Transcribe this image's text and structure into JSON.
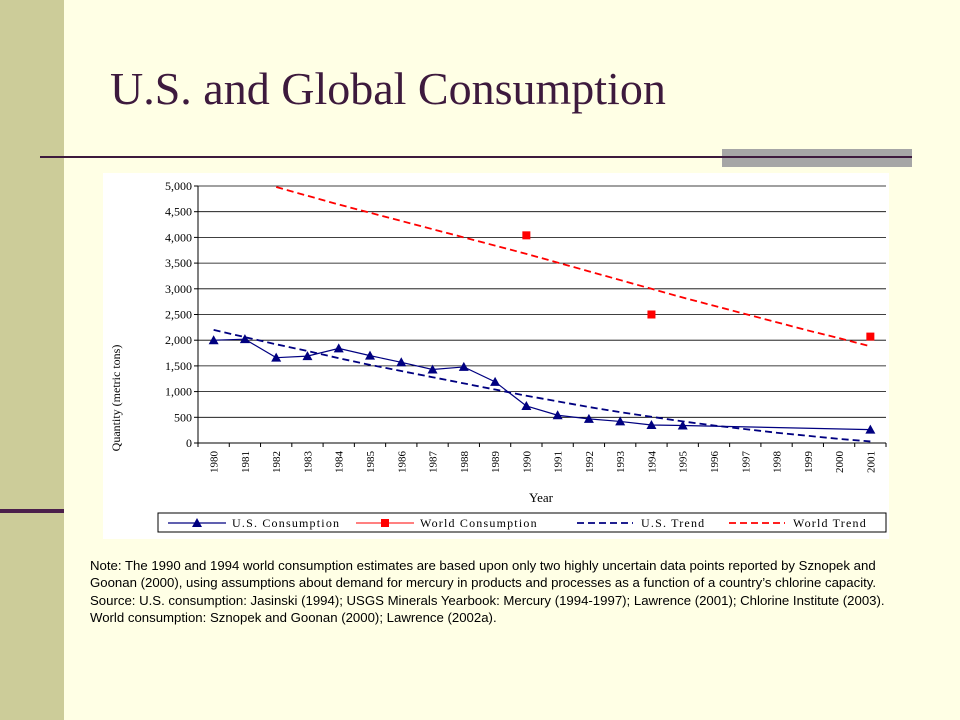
{
  "slide": {
    "title": "U.S. and Global Consumption",
    "note": "Note: The 1990 and 1994 world consumption estimates are based upon only two highly uncertain data points reported by Sznopek and Goonan (2000), using assumptions about demand for mercury in products and processes as a function of a country’s chlorine capacity.",
    "source": "Source: U.S. consumption: Jasinski (1994); USGS Minerals Yearbook: Mercury (1994-1997); Lawrence (2001); Chlorine Institute (2003). World consumption: Sznopek and Goonan (2000); Lawrence (2002a)."
  },
  "colors": {
    "background": "#FFFFE5",
    "left_bar": "#CCCC99",
    "title": "#3D1A3D",
    "us_series": "#000080",
    "world_series": "#FF0000"
  },
  "chart_data": {
    "type": "line",
    "title": "",
    "xlabel": "Year",
    "ylabel": "Quantity (metric tons)",
    "x": [
      "1980",
      "1981",
      "1982",
      "1983",
      "1984",
      "1985",
      "1986",
      "1987",
      "1988",
      "1989",
      "1990",
      "1991",
      "1992",
      "1993",
      "1994",
      "1995",
      "1996",
      "1997",
      "1998",
      "1999",
      "2000",
      "2001"
    ],
    "ylim": [
      0,
      5000
    ],
    "yticks": [
      "0",
      "500",
      "1,000",
      "1,500",
      "2,000",
      "2,500",
      "3,000",
      "3,500",
      "4,000",
      "4,500",
      "5,000"
    ],
    "grid": true,
    "legend_position": "bottom",
    "series": [
      {
        "name": "U.S. Consumption",
        "style": "line-triangle",
        "values": [
          2000,
          2020,
          1660,
          1690,
          1840,
          1700,
          1570,
          1430,
          1480,
          1190,
          720,
          540,
          470,
          420,
          350,
          340,
          null,
          null,
          null,
          null,
          null,
          260
        ]
      },
      {
        "name": "World Consumption",
        "style": "square-marker",
        "values": [
          null,
          null,
          null,
          null,
          null,
          null,
          null,
          null,
          null,
          null,
          4040,
          null,
          null,
          null,
          2500,
          null,
          null,
          null,
          null,
          null,
          null,
          2070
        ]
      },
      {
        "name": "U.S. Trend",
        "style": "dashed",
        "values": [
          2200,
          2060,
          1920,
          1790,
          1650,
          1520,
          1400,
          1280,
          1160,
          1040,
          920,
          810,
          700,
          600,
          510,
          420,
          340,
          270,
          200,
          140,
          80,
          30
        ]
      },
      {
        "name": "World Trend",
        "style": "dashed",
        "values": [
          null,
          null,
          4980,
          4810,
          4640,
          4480,
          4320,
          4160,
          4000,
          3840,
          3680,
          3510,
          3340,
          3170,
          3000,
          2830,
          2670,
          2510,
          2350,
          2190,
          2040,
          1880
        ]
      }
    ]
  }
}
